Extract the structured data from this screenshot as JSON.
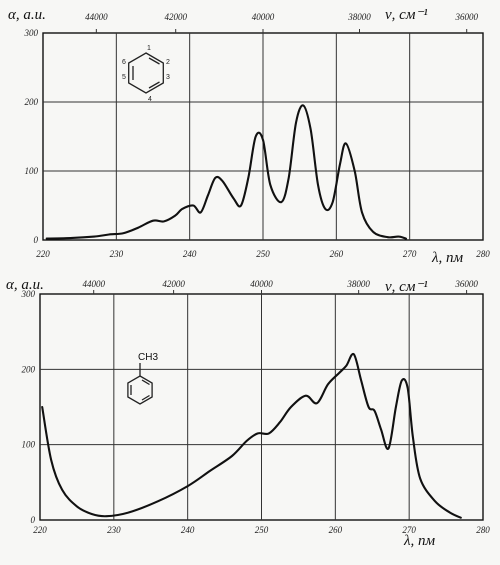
{
  "chart_data": [
    {
      "type": "line",
      "xlabel": "λ, nм",
      "ylabel": "α, a.u.",
      "x2label": "ν, cм⁻¹",
      "xlim": [
        220,
        280
      ],
      "ylim": [
        0,
        300
      ],
      "x_ticks": [
        "220",
        "230",
        "240",
        "250",
        "260",
        "270",
        "280"
      ],
      "y_ticks": [
        "0",
        "100",
        "200",
        "300"
      ],
      "top_ticks": [
        "44000",
        "42000",
        "40000",
        "38000",
        "36000"
      ],
      "grid": true,
      "molecule": {
        "name": "benzene",
        "atom_numbers": [
          "1",
          "2",
          "3",
          "4",
          "5",
          "6"
        ]
      },
      "series": [
        {
          "x": [
            220.5,
            224,
            227,
            229,
            231,
            233,
            235,
            236.5,
            238,
            239,
            240.5,
            241.5,
            242.5,
            243.5,
            244.5,
            246,
            247,
            248,
            249,
            250,
            251,
            252.5,
            253.5,
            254.5,
            255.5,
            256.5,
            257.5,
            258.5,
            259.5,
            260.5,
            261.3,
            262.5,
            263.5,
            265,
            267,
            268.5,
            269.5
          ],
          "y": [
            2,
            3,
            5,
            8,
            10,
            18,
            28,
            27,
            35,
            45,
            50,
            40,
            65,
            90,
            85,
            60,
            50,
            90,
            150,
            145,
            80,
            55,
            90,
            170,
            195,
            160,
            80,
            45,
            55,
            110,
            140,
            100,
            40,
            12,
            4,
            5,
            2
          ]
        }
      ]
    },
    {
      "type": "line",
      "xlabel": "λ, nм",
      "ylabel": "α, a.u.",
      "x2label": "ν, cм⁻¹",
      "xlim": [
        220,
        280
      ],
      "ylim": [
        0,
        300
      ],
      "x_ticks": [
        "220",
        "230",
        "240",
        "250",
        "260",
        "270",
        "280"
      ],
      "y_ticks": [
        "0",
        "100",
        "200",
        "300"
      ],
      "top_ticks": [
        "44000",
        "42000",
        "40000",
        "38000",
        "36000"
      ],
      "grid": true,
      "molecule": {
        "name": "toluene",
        "substituent": "CH3"
      },
      "series": [
        {
          "x": [
            220.3,
            221.5,
            223,
            225,
            227,
            229,
            232,
            236,
            240,
            243,
            246,
            248,
            249.5,
            251,
            252.5,
            254,
            256,
            257.5,
            259,
            260.5,
            261.5,
            262.5,
            263.5,
            264.5,
            265.3,
            266.2,
            267.2,
            268.2,
            269,
            269.8,
            270.5,
            271.5,
            273.5,
            275.5,
            277
          ],
          "y": [
            150,
            80,
            40,
            18,
            8,
            5,
            10,
            25,
            45,
            65,
            85,
            105,
            115,
            115,
            130,
            150,
            165,
            155,
            180,
            195,
            205,
            220,
            185,
            150,
            145,
            120,
            95,
            150,
            185,
            175,
            110,
            55,
            25,
            10,
            3
          ]
        }
      ]
    }
  ]
}
